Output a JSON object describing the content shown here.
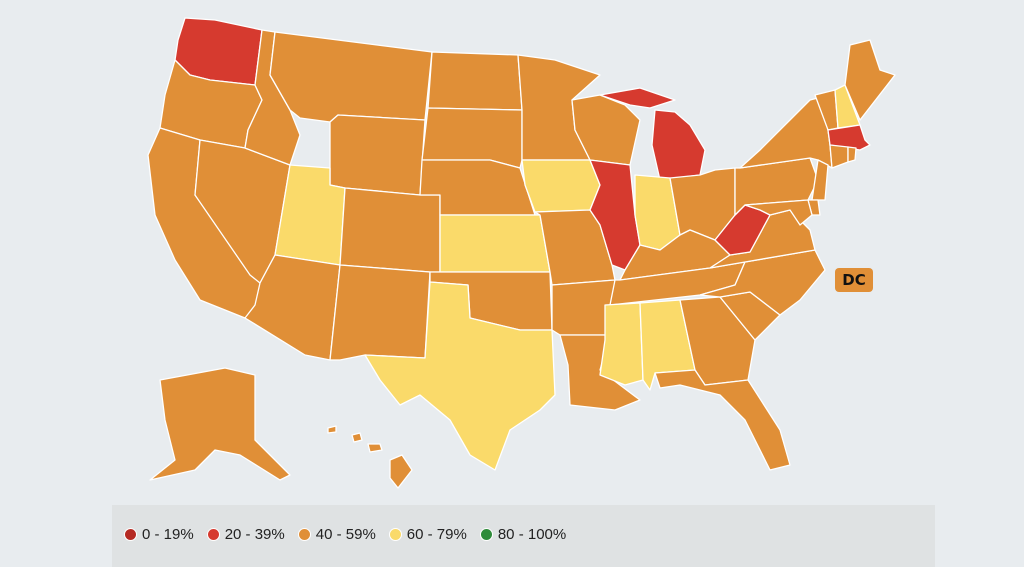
{
  "legend": [
    {
      "label": "0 - 19%",
      "color": "#b52a23"
    },
    {
      "label": "20 - 39%",
      "color": "#d63a2f"
    },
    {
      "label": "40 - 59%",
      "color": "#e08f37"
    },
    {
      "label": "60 - 79%",
      "color": "#fada6a"
    },
    {
      "label": "80 - 100%",
      "color": "#2e8b3a"
    }
  ],
  "dc_label": "DC",
  "state_bins": {
    "WA": "20 - 39%",
    "MI": "20 - 39%",
    "IL": "20 - 39%",
    "WV": "20 - 39%",
    "MA": "20 - 39%",
    "UT": "60 - 79%",
    "KS": "60 - 79%",
    "IA": "60 - 79%",
    "IN": "60 - 79%",
    "TX": "60 - 79%",
    "MS": "60 - 79%",
    "AL": "60 - 79%",
    "NH": "60 - 79%",
    "OR": "40 - 59%",
    "CA": "40 - 59%",
    "NV": "40 - 59%",
    "ID": "40 - 59%",
    "MT": "40 - 59%",
    "WY": "40 - 59%",
    "AZ": "40 - 59%",
    "CO": "40 - 59%",
    "NM": "40 - 59%",
    "ND": "40 - 59%",
    "SD": "40 - 59%",
    "NE": "40 - 59%",
    "OK": "40 - 59%",
    "MN": "40 - 59%",
    "MO": "40 - 59%",
    "AR": "40 - 59%",
    "LA": "40 - 59%",
    "WI": "40 - 59%",
    "OH": "40 - 59%",
    "KY": "40 - 59%",
    "TN": "40 - 59%",
    "GA": "40 - 59%",
    "FL": "40 - 59%",
    "SC": "40 - 59%",
    "NC": "40 - 59%",
    "VA": "40 - 59%",
    "PA": "40 - 59%",
    "NY": "40 - 59%",
    "VT": "40 - 59%",
    "ME": "40 - 59%",
    "CT": "40 - 59%",
    "RI": "40 - 59%",
    "NJ": "40 - 59%",
    "DE": "40 - 59%",
    "MD": "40 - 59%",
    "AK": "40 - 59%",
    "HI": "40 - 59%",
    "DC": "40 - 59%"
  }
}
